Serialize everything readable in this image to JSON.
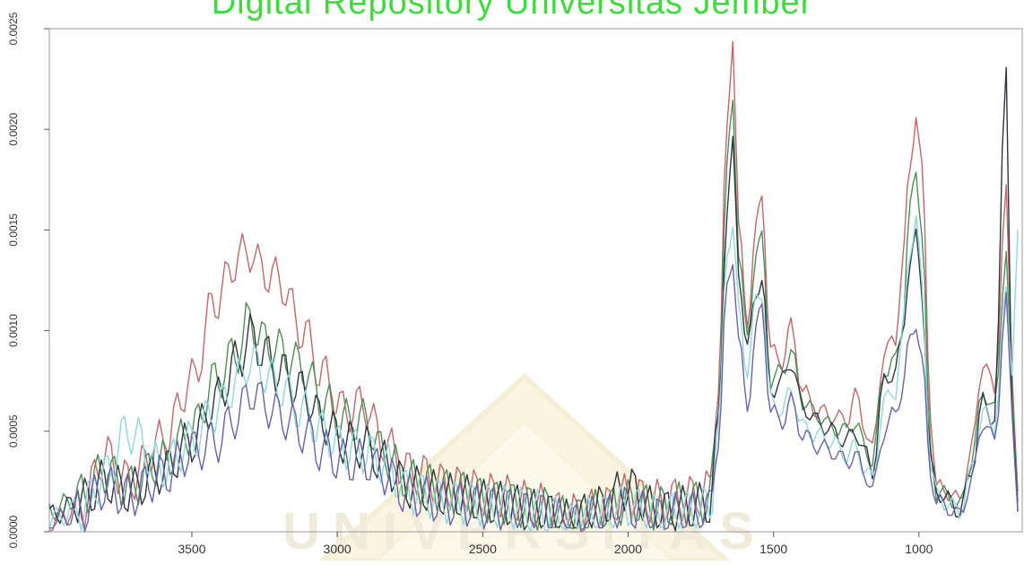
{
  "watermark": {
    "text": "Digital Repository Universitas Jember",
    "color": "#3ddc3d",
    "seal_text": "UNIVERSITAS"
  },
  "chart_data": {
    "type": "line",
    "title": "",
    "xlabel": "",
    "ylabel": "",
    "x_reversed": true,
    "xlim": [
      3990,
      645
    ],
    "ylim": [
      0,
      0.0025
    ],
    "xticks": [
      3500,
      3000,
      2500,
      2000,
      1500,
      1000
    ],
    "xtick_labels": [
      "3500",
      "3000",
      "2500",
      "2000",
      "1500",
      "1000"
    ],
    "yticks": [
      0.0,
      0.0005,
      0.001,
      0.0015,
      0.002,
      0.0025
    ],
    "ytick_labels": [
      "0.0000",
      "0.0005",
      "0.0010",
      "0.0015",
      "0.0020",
      "0.0025"
    ],
    "grid": false,
    "legend": "none",
    "series": [
      {
        "color": "#c2686a",
        "points": [
          [
            3990,
            5e-05
          ],
          [
            3880,
            0.00012
          ],
          [
            3800,
            0.00038
          ],
          [
            3720,
            0.00025
          ],
          [
            3600,
            0.00045
          ],
          [
            3500,
            0.00075
          ],
          [
            3420,
            0.00115
          ],
          [
            3340,
            0.00136
          ],
          [
            3300,
            0.0014
          ],
          [
            3260,
            0.0013
          ],
          [
            3200,
            0.00125
          ],
          [
            3120,
            0.001
          ],
          [
            3050,
            0.00078
          ],
          [
            2980,
            0.0006
          ],
          [
            2900,
            0.00063
          ],
          [
            2850,
            0.00045
          ],
          [
            2750,
            0.0003
          ],
          [
            2600,
            0.00022
          ],
          [
            2450,
            0.00018
          ],
          [
            2300,
            0.00013
          ],
          [
            2200,
            8e-05
          ],
          [
            2100,
            0.00011
          ],
          [
            2000,
            0.00018
          ],
          [
            1900,
            0.00015
          ],
          [
            1800,
            0.00017
          ],
          [
            1720,
            0.0002
          ],
          [
            1690,
            0.0007
          ],
          [
            1660,
            0.002
          ],
          [
            1640,
            0.00248
          ],
          [
            1620,
            0.0015
          ],
          [
            1590,
            0.00105
          ],
          [
            1560,
            0.0015
          ],
          [
            1540,
            0.00168
          ],
          [
            1510,
            0.0009
          ],
          [
            1470,
            0.00085
          ],
          [
            1440,
            0.00102
          ],
          [
            1400,
            0.0007
          ],
          [
            1350,
            0.0006
          ],
          [
            1300,
            0.00058
          ],
          [
            1250,
            0.00055
          ],
          [
            1220,
            0.00068
          ],
          [
            1180,
            0.0005
          ],
          [
            1160,
            0.0004
          ],
          [
            1120,
            0.0009
          ],
          [
            1080,
            0.00095
          ],
          [
            1060,
            0.0013
          ],
          [
            1030,
            0.0018
          ],
          [
            1010,
            0.0021
          ],
          [
            990,
            0.0018
          ],
          [
            960,
            0.0006
          ],
          [
            940,
            0.00022
          ],
          [
            900,
            0.0002
          ],
          [
            860,
            0.00015
          ],
          [
            820,
            0.0004
          ],
          [
            780,
            0.00085
          ],
          [
            740,
            0.0007
          ],
          [
            700,
            0.00168
          ],
          [
            680,
            0.0008
          ],
          [
            660,
            0.0002
          ]
        ]
      },
      {
        "color": "#4f8e55",
        "points": [
          [
            3990,
            0.0001
          ],
          [
            3880,
            0.00018
          ],
          [
            3800,
            0.0003
          ],
          [
            3720,
            0.00022
          ],
          [
            3600,
            0.00035
          ],
          [
            3500,
            0.0005
          ],
          [
            3420,
            0.00075
          ],
          [
            3340,
            0.0009
          ],
          [
            3300,
            0.00107
          ],
          [
            3260,
            0.00095
          ],
          [
            3200,
            0.0009
          ],
          [
            3120,
            0.00082
          ],
          [
            3050,
            0.00065
          ],
          [
            2980,
            0.00055
          ],
          [
            2900,
            0.00055
          ],
          [
            2850,
            0.0004
          ],
          [
            2750,
            0.00025
          ],
          [
            2600,
            0.0002
          ],
          [
            2450,
            0.00015
          ],
          [
            2300,
            0.00012
          ],
          [
            2200,
            6e-05
          ],
          [
            2100,
            0.0001
          ],
          [
            2000,
            0.00015
          ],
          [
            1900,
            0.00012
          ],
          [
            1800,
            0.00014
          ],
          [
            1720,
            0.00015
          ],
          [
            1690,
            0.0006
          ],
          [
            1660,
            0.0018
          ],
          [
            1640,
            0.00215
          ],
          [
            1620,
            0.0014
          ],
          [
            1590,
            0.00095
          ],
          [
            1560,
            0.0014
          ],
          [
            1540,
            0.00145
          ],
          [
            1510,
            0.00075
          ],
          [
            1470,
            0.0008
          ],
          [
            1440,
            0.0009
          ],
          [
            1400,
            0.00065
          ],
          [
            1350,
            0.00058
          ],
          [
            1300,
            0.00052
          ],
          [
            1250,
            0.0005
          ],
          [
            1220,
            0.00055
          ],
          [
            1180,
            0.0004
          ],
          [
            1160,
            0.00035
          ],
          [
            1120,
            0.0008
          ],
          [
            1080,
            0.00085
          ],
          [
            1060,
            0.001
          ],
          [
            1030,
            0.0016
          ],
          [
            1010,
            0.0018
          ],
          [
            990,
            0.0015
          ],
          [
            960,
            0.0004
          ],
          [
            940,
            0.0002
          ],
          [
            900,
            0.00018
          ],
          [
            860,
            0.00012
          ],
          [
            820,
            0.00035
          ],
          [
            780,
            0.0007
          ],
          [
            740,
            0.0006
          ],
          [
            700,
            0.0014
          ],
          [
            680,
            0.0007
          ],
          [
            660,
            0.00015
          ]
        ]
      },
      {
        "color": "#2f3640",
        "points": [
          [
            3990,
            8e-05
          ],
          [
            3880,
            0.00015
          ],
          [
            3800,
            0.00025
          ],
          [
            3720,
            0.0002
          ],
          [
            3600,
            0.0003
          ],
          [
            3500,
            0.00045
          ],
          [
            3420,
            0.00065
          ],
          [
            3340,
            0.00085
          ],
          [
            3300,
            0.00098
          ],
          [
            3260,
            0.0009
          ],
          [
            3200,
            0.0008
          ],
          [
            3120,
            0.0007
          ],
          [
            3050,
            0.00055
          ],
          [
            2980,
            0.00045
          ],
          [
            2900,
            0.00042
          ],
          [
            2850,
            0.00035
          ],
          [
            2750,
            0.00022
          ],
          [
            2600,
            0.00018
          ],
          [
            2450,
            0.00014
          ],
          [
            2300,
            0.0001
          ],
          [
            2200,
            5e-05
          ],
          [
            2100,
            0.00012
          ],
          [
            2000,
            0.00022
          ],
          [
            1900,
            0.0001
          ],
          [
            1800,
            0.00012
          ],
          [
            1720,
            0.00014
          ],
          [
            1690,
            0.00055
          ],
          [
            1660,
            0.0016
          ],
          [
            1640,
            0.00192
          ],
          [
            1620,
            0.0013
          ],
          [
            1590,
            0.0009
          ],
          [
            1560,
            0.0012
          ],
          [
            1540,
            0.00125
          ],
          [
            1510,
            0.0007
          ],
          [
            1470,
            0.00075
          ],
          [
            1440,
            0.00085
          ],
          [
            1400,
            0.00062
          ],
          [
            1350,
            0.00055
          ],
          [
            1300,
            0.0005
          ],
          [
            1250,
            0.00045
          ],
          [
            1220,
            0.0005
          ],
          [
            1180,
            0.00038
          ],
          [
            1160,
            0.0003
          ],
          [
            1120,
            0.00075
          ],
          [
            1080,
            0.0008
          ],
          [
            1060,
            0.00095
          ],
          [
            1030,
            0.00135
          ],
          [
            1010,
            0.00146
          ],
          [
            990,
            0.0012
          ],
          [
            960,
            0.00035
          ],
          [
            940,
            0.0002
          ],
          [
            900,
            0.00016
          ],
          [
            860,
            0.0001
          ],
          [
            820,
            0.0003
          ],
          [
            780,
            0.00065
          ],
          [
            740,
            0.00055
          ],
          [
            700,
            0.00235
          ],
          [
            680,
            0.0006
          ],
          [
            660,
            0.0001
          ]
        ]
      },
      {
        "color": "#8fd8dc",
        "points": [
          [
            3990,
            6e-05
          ],
          [
            3880,
            0.00012
          ],
          [
            3800,
            0.00028
          ],
          [
            3720,
            0.0005
          ],
          [
            3600,
            0.00032
          ],
          [
            3500,
            0.00045
          ],
          [
            3420,
            0.0006
          ],
          [
            3340,
            0.00075
          ],
          [
            3300,
            0.00085
          ],
          [
            3260,
            0.0008
          ],
          [
            3200,
            0.00072
          ],
          [
            3120,
            0.0006
          ],
          [
            3050,
            0.0005
          ],
          [
            2980,
            0.00042
          ],
          [
            2900,
            0.0004
          ],
          [
            2850,
            0.00035
          ],
          [
            2750,
            0.0002
          ],
          [
            2600,
            0.00015
          ],
          [
            2450,
            0.00013
          ],
          [
            2300,
            0.0001
          ],
          [
            2200,
            4e-05
          ],
          [
            2100,
            8e-05
          ],
          [
            2000,
            0.00013
          ],
          [
            1900,
            8e-05
          ],
          [
            1800,
            0.0001
          ],
          [
            1720,
            0.00012
          ],
          [
            1690,
            0.0005
          ],
          [
            1660,
            0.0014
          ],
          [
            1640,
            0.00152
          ],
          [
            1620,
            0.0011
          ],
          [
            1590,
            0.0008
          ],
          [
            1560,
            0.00115
          ],
          [
            1540,
            0.0012
          ],
          [
            1510,
            0.00065
          ],
          [
            1470,
            0.0006
          ],
          [
            1440,
            0.0007
          ],
          [
            1400,
            0.00052
          ],
          [
            1350,
            0.00048
          ],
          [
            1300,
            0.00045
          ],
          [
            1250,
            0.00038
          ],
          [
            1220,
            0.00042
          ],
          [
            1180,
            0.0003
          ],
          [
            1160,
            0.00025
          ],
          [
            1120,
            0.00065
          ],
          [
            1080,
            0.0007
          ],
          [
            1060,
            0.00095
          ],
          [
            1030,
            0.0014
          ],
          [
            1010,
            0.00157
          ],
          [
            990,
            0.0012
          ],
          [
            960,
            0.00035
          ],
          [
            940,
            0.00018
          ],
          [
            900,
            0.00014
          ],
          [
            860,
            0.0001
          ],
          [
            820,
            0.0003
          ],
          [
            780,
            0.0006
          ],
          [
            740,
            0.00052
          ],
          [
            700,
            0.0012
          ],
          [
            680,
            0.0008
          ],
          [
            660,
            0.0015
          ]
        ]
      },
      {
        "color": "#6a62a8",
        "points": [
          [
            3990,
            4e-05
          ],
          [
            3880,
            0.0001
          ],
          [
            3800,
            0.00022
          ],
          [
            3720,
            0.00018
          ],
          [
            3600,
            0.00028
          ],
          [
            3500,
            0.0004
          ],
          [
            3420,
            0.00045
          ],
          [
            3340,
            0.00058
          ],
          [
            3300,
            0.0007
          ],
          [
            3260,
            0.00065
          ],
          [
            3200,
            0.00058
          ],
          [
            3120,
            0.0005
          ],
          [
            3050,
            0.0004
          ],
          [
            2980,
            0.00035
          ],
          [
            2900,
            0.00035
          ],
          [
            2850,
            0.0003
          ],
          [
            2750,
            0.00018
          ],
          [
            2600,
            0.00014
          ],
          [
            2450,
            0.00012
          ],
          [
            2300,
            9e-05
          ],
          [
            2200,
            4e-05
          ],
          [
            2100,
            7e-05
          ],
          [
            2000,
            0.00012
          ],
          [
            1900,
            7e-05
          ],
          [
            1800,
            9e-05
          ],
          [
            1720,
            0.0001
          ],
          [
            1690,
            0.00045
          ],
          [
            1660,
            0.0012
          ],
          [
            1640,
            0.00137
          ],
          [
            1620,
            0.00095
          ],
          [
            1590,
            0.00062
          ],
          [
            1560,
            0.001
          ],
          [
            1540,
            0.00112
          ],
          [
            1510,
            0.0006
          ],
          [
            1470,
            0.00055
          ],
          [
            1440,
            0.00065
          ],
          [
            1400,
            0.00048
          ],
          [
            1350,
            0.00043
          ],
          [
            1300,
            0.0004
          ],
          [
            1250,
            0.00035
          ],
          [
            1220,
            0.00038
          ],
          [
            1180,
            0.00028
          ],
          [
            1160,
            0.0002
          ],
          [
            1120,
            0.0005
          ],
          [
            1080,
            0.0006
          ],
          [
            1060,
            0.0007
          ],
          [
            1030,
            0.00095
          ],
          [
            1010,
            0.00105
          ],
          [
            990,
            0.00085
          ],
          [
            960,
            0.0003
          ],
          [
            940,
            0.00015
          ],
          [
            900,
            0.00012
          ],
          [
            860,
            8e-05
          ],
          [
            820,
            0.00025
          ],
          [
            780,
            0.00055
          ],
          [
            740,
            0.00045
          ],
          [
            700,
            0.00115
          ],
          [
            680,
            0.0006
          ],
          [
            660,
            0.0001
          ]
        ]
      }
    ]
  }
}
